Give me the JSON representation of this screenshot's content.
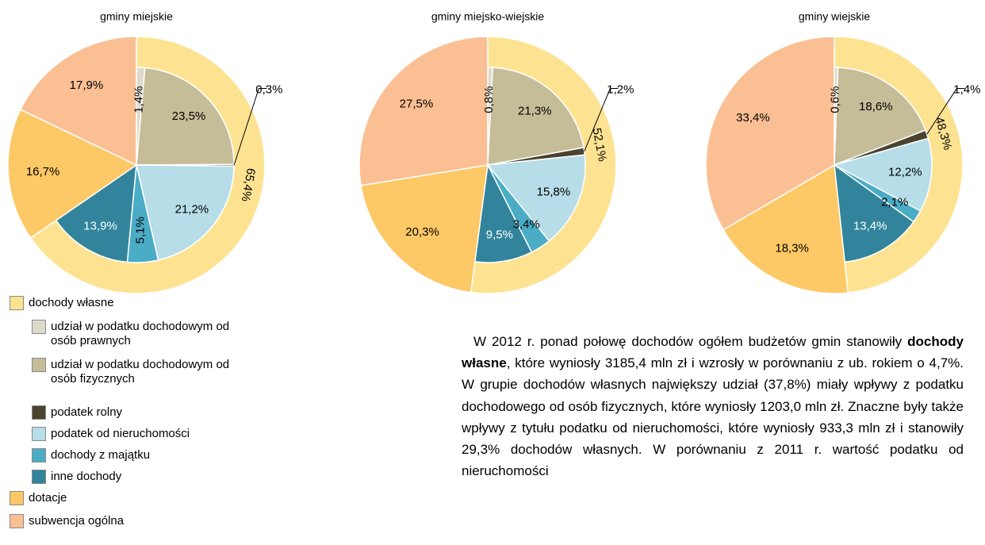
{
  "legend": {
    "categories": [
      "dochody własne",
      "udział w podatku dochodowym od osób prawnych",
      "udział w podatku dochodowym od osób fizycznych",
      "podatek rolny",
      "podatek od nieruchomości",
      "dochody z majątku",
      "inne dochody",
      "dotacje",
      "subwencja ogólna"
    ],
    "colors": [
      "#fde391",
      "#dddacb",
      "#c5bd98",
      "#4a4330",
      "#b7dde8",
      "#4bacc6",
      "#31849b",
      "#fdc866",
      "#fbbf94"
    ]
  },
  "chart_data": [
    {
      "type": "pie",
      "title": "gminy miejskie",
      "values": [
        1.4,
        23.5,
        0.3,
        21.2,
        5.1,
        13.9,
        16.7,
        17.9
      ],
      "value_labels": [
        "1,4%",
        "23,5%",
        "0,3%",
        "21,2%",
        "5,1%",
        "13,9%",
        "16,7%",
        "17,9%"
      ],
      "outer_value": 65.4,
      "outer_label": "65,4%"
    },
    {
      "type": "pie",
      "title": "gminy miejsko-wiejskie",
      "values": [
        0.8,
        21.3,
        1.2,
        15.8,
        3.4,
        9.5,
        20.3,
        27.5
      ],
      "value_labels": [
        "0,8%",
        "21,3%",
        "1,2%",
        "15,8%",
        "3,4%",
        "9,5%",
        "20,3%",
        "27,5%"
      ],
      "outer_value": 52.1,
      "outer_label": "52,1%"
    },
    {
      "type": "pie",
      "title": "gminy wiejskie",
      "values": [
        0.6,
        18.6,
        1.4,
        12.2,
        2.1,
        13.4,
        18.3,
        33.4
      ],
      "value_labels": [
        "0,6%",
        "18,6%",
        "1,4%",
        "12,2%",
        "2,1%",
        "13,4%",
        "18,3%",
        "33,4%"
      ],
      "outer_value": 48.3,
      "outer_label": "48,3%"
    }
  ],
  "text": {
    "parts": [
      "W 2012 r. ponad połowę dochodów ogółem budżetów gmin stanowiły ",
      "dochody własne",
      ", które wyniosły 3185,4 mln zł i wzrosły w porównaniu z ub. rokiem o 4,7%. W grupie dochodów własnych największy udział (37,8%) miały wpływy z podatku dochodowego od osób fizycznych, które wyniosły 1203,0 mln zł. Znaczne były także wpływy z tytułu podatku od nieruchomości, które wyniosły 933,3 mln zł i stanowiły 29,3% dochodów własnych. W porównaniu z 2011 r. wartość podatku od nieruchomości"
    ]
  }
}
